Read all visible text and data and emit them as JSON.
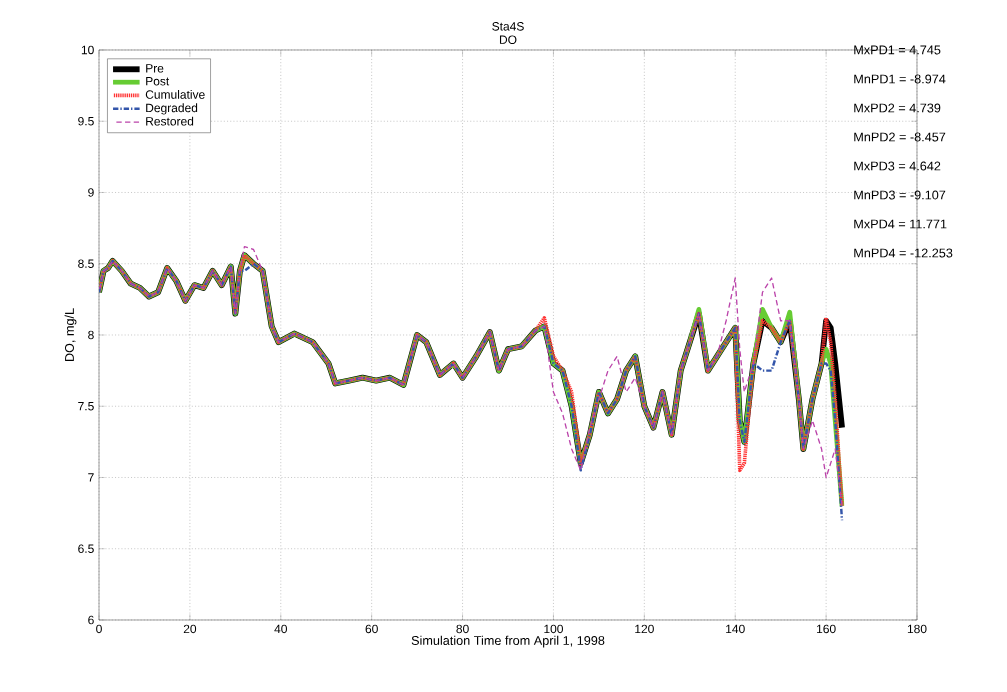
{
  "chart_data": {
    "type": "line",
    "title": "Sta4S",
    "subtitle": "DO",
    "xlabel": "Simulation Time from April 1, 1998",
    "ylabel": "DO, mg/L",
    "xlim": [
      0,
      180
    ],
    "ylim": [
      6,
      10
    ],
    "xticks": [
      0,
      20,
      40,
      60,
      80,
      100,
      120,
      140,
      160,
      180
    ],
    "yticks": [
      6,
      6.5,
      7,
      7.5,
      8,
      8.5,
      9,
      9.5,
      10
    ],
    "grid": true,
    "legend": "top left",
    "annotations": [
      "MxPD1 = 4.745",
      "MnPD1 = -8.974",
      "MxPD2 = 4.739",
      "MnPD2 = -8.457",
      "MxPD3 = 4.642",
      "MnPD3 = -9.107",
      "MxPD4 = 11.771",
      "MnPD4 = -12.253"
    ],
    "x": [
      0,
      1,
      2,
      3,
      5,
      7,
      9,
      11,
      13,
      15,
      17,
      19,
      21,
      23,
      25,
      27,
      29,
      30,
      31,
      32,
      34,
      36,
      38,
      39.5,
      43,
      47,
      50.5,
      52,
      55,
      58,
      61,
      64,
      67,
      70,
      72,
      75,
      78,
      80,
      83,
      86,
      88,
      90,
      93,
      96,
      98,
      100,
      102,
      104,
      106,
      108,
      110,
      112,
      114,
      116,
      118,
      120,
      122,
      124,
      126,
      128,
      130,
      132,
      134,
      136,
      138,
      140,
      141,
      142,
      144,
      146,
      148,
      150,
      152,
      154,
      155,
      157,
      159,
      160,
      161,
      162,
      163.5
    ],
    "series": [
      {
        "name": "Pre",
        "color": "#000000",
        "line_style": "solid",
        "values": [
          8.3,
          8.45,
          8.47,
          8.52,
          8.45,
          8.36,
          8.33,
          8.27,
          8.3,
          8.47,
          8.38,
          8.24,
          8.35,
          8.33,
          8.45,
          8.35,
          8.48,
          8.15,
          8.45,
          8.56,
          8.5,
          8.45,
          8.06,
          7.95,
          8.01,
          7.95,
          7.8,
          7.66,
          7.68,
          7.7,
          7.68,
          7.7,
          7.65,
          8.0,
          7.95,
          7.72,
          7.8,
          7.7,
          7.85,
          8.02,
          7.75,
          7.9,
          7.92,
          8.03,
          8.06,
          7.8,
          7.75,
          7.5,
          7.1,
          7.3,
          7.6,
          7.45,
          7.55,
          7.75,
          7.85,
          7.5,
          7.35,
          7.6,
          7.3,
          7.75,
          7.95,
          8.15,
          7.75,
          7.85,
          7.95,
          8.05,
          7.4,
          7.25,
          7.8,
          8.1,
          8.05,
          7.95,
          8.1,
          7.55,
          7.2,
          7.55,
          7.8,
          8.1,
          8.05,
          7.8,
          7.35
        ]
      },
      {
        "name": "Post",
        "color": "#66cc33",
        "line_style": "solid",
        "values": [
          8.3,
          8.45,
          8.47,
          8.52,
          8.45,
          8.36,
          8.33,
          8.27,
          8.3,
          8.47,
          8.38,
          8.24,
          8.35,
          8.33,
          8.45,
          8.35,
          8.48,
          8.15,
          8.45,
          8.56,
          8.5,
          8.45,
          8.06,
          7.95,
          8.01,
          7.95,
          7.8,
          7.66,
          7.68,
          7.7,
          7.68,
          7.7,
          7.65,
          8.0,
          7.95,
          7.72,
          7.8,
          7.7,
          7.85,
          8.02,
          7.75,
          7.9,
          7.92,
          8.03,
          8.06,
          7.8,
          7.75,
          7.5,
          7.1,
          7.3,
          7.6,
          7.45,
          7.55,
          7.75,
          7.85,
          7.5,
          7.35,
          7.6,
          7.3,
          7.75,
          7.95,
          8.18,
          7.75,
          7.85,
          7.95,
          8.05,
          7.4,
          7.25,
          7.8,
          8.18,
          8.05,
          7.95,
          8.16,
          7.55,
          7.2,
          7.55,
          7.8,
          7.9,
          7.8,
          7.4,
          6.8
        ]
      },
      {
        "name": "Cumulative",
        "color": "#ff3333",
        "line_style": "dotted",
        "values": [
          8.3,
          8.45,
          8.47,
          8.52,
          8.45,
          8.36,
          8.33,
          8.27,
          8.3,
          8.47,
          8.38,
          8.24,
          8.35,
          8.33,
          8.45,
          8.35,
          8.48,
          8.15,
          8.45,
          8.56,
          8.5,
          8.45,
          8.06,
          7.95,
          8.01,
          7.95,
          7.8,
          7.66,
          7.68,
          7.7,
          7.68,
          7.7,
          7.65,
          8.0,
          7.95,
          7.72,
          7.8,
          7.7,
          7.85,
          8.02,
          7.75,
          7.9,
          7.92,
          8.03,
          8.12,
          7.85,
          7.75,
          7.6,
          7.1,
          7.3,
          7.6,
          7.45,
          7.55,
          7.75,
          7.85,
          7.5,
          7.35,
          7.6,
          7.3,
          7.75,
          7.95,
          8.15,
          7.75,
          7.85,
          7.95,
          8.05,
          7.05,
          7.1,
          7.8,
          8.1,
          8.05,
          7.95,
          8.1,
          7.55,
          7.2,
          7.55,
          7.8,
          8.12,
          7.95,
          7.55,
          6.8
        ]
      },
      {
        "name": "Degraded",
        "color": "#3355aa",
        "line_style": "dashdot",
        "values": [
          8.3,
          8.45,
          8.47,
          8.52,
          8.45,
          8.36,
          8.33,
          8.27,
          8.3,
          8.47,
          8.38,
          8.24,
          8.35,
          8.33,
          8.45,
          8.35,
          8.48,
          8.15,
          8.45,
          8.45,
          8.5,
          8.45,
          8.06,
          7.95,
          8.01,
          7.95,
          7.8,
          7.66,
          7.68,
          7.7,
          7.68,
          7.7,
          7.65,
          8.0,
          7.95,
          7.72,
          7.8,
          7.7,
          7.85,
          8.02,
          7.75,
          7.9,
          7.92,
          8.03,
          8.06,
          7.8,
          7.75,
          7.5,
          7.05,
          7.3,
          7.6,
          7.45,
          7.55,
          7.75,
          7.85,
          7.5,
          7.35,
          7.6,
          7.3,
          7.75,
          7.95,
          8.15,
          7.75,
          7.85,
          7.95,
          8.05,
          7.4,
          7.25,
          7.8,
          7.75,
          7.75,
          7.95,
          8.1,
          7.55,
          7.2,
          7.55,
          7.8,
          7.8,
          7.75,
          7.4,
          6.7
        ]
      },
      {
        "name": "Restored",
        "color": "#bb44aa",
        "line_style": "dashed",
        "values": [
          8.3,
          8.45,
          8.47,
          8.52,
          8.45,
          8.36,
          8.33,
          8.27,
          8.3,
          8.47,
          8.38,
          8.24,
          8.35,
          8.33,
          8.45,
          8.35,
          8.48,
          8.15,
          8.45,
          8.62,
          8.6,
          8.45,
          8.06,
          7.95,
          8.01,
          7.95,
          7.8,
          7.66,
          7.68,
          7.7,
          7.68,
          7.7,
          7.65,
          8.0,
          7.95,
          7.72,
          7.8,
          7.7,
          7.85,
          8.02,
          7.75,
          7.9,
          7.92,
          8.03,
          8.06,
          7.6,
          7.45,
          7.2,
          7.05,
          7.35,
          7.55,
          7.75,
          7.85,
          7.6,
          7.7,
          7.5,
          7.35,
          7.6,
          7.3,
          7.75,
          7.95,
          8.15,
          7.75,
          7.85,
          8.1,
          8.4,
          7.9,
          7.6,
          7.8,
          8.3,
          8.4,
          8.1,
          8.1,
          7.55,
          7.2,
          7.4,
          7.2,
          7.0,
          7.1,
          7.2,
          6.8
        ]
      }
    ]
  }
}
